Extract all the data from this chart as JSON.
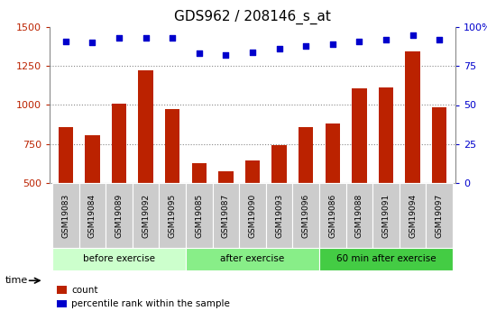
{
  "title": "GDS962 / 208146_s_at",
  "categories": [
    "GSM19083",
    "GSM19084",
    "GSM19089",
    "GSM19092",
    "GSM19095",
    "GSM19085",
    "GSM19087",
    "GSM19090",
    "GSM19093",
    "GSM19096",
    "GSM19086",
    "GSM19088",
    "GSM19091",
    "GSM19094",
    "GSM19097"
  ],
  "bar_values": [
    860,
    805,
    1010,
    1225,
    975,
    630,
    575,
    645,
    740,
    860,
    880,
    1105,
    1115,
    1345,
    985
  ],
  "percentile_values": [
    91,
    90,
    93,
    93,
    93,
    83,
    82,
    84,
    86,
    88,
    89,
    91,
    92,
    95,
    92
  ],
  "bar_color": "#bb2200",
  "percentile_color": "#0000cc",
  "ylim_left": [
    500,
    1500
  ],
  "ylim_right": [
    0,
    100
  ],
  "yticks_left": [
    500,
    750,
    1000,
    1250,
    1500
  ],
  "yticks_right": [
    0,
    25,
    50,
    75,
    100
  ],
  "group_defs": [
    {
      "label": "before exercise",
      "start": 0,
      "end": 4,
      "color": "#ccffcc"
    },
    {
      "label": "after exercise",
      "start": 5,
      "end": 9,
      "color": "#88ee88"
    },
    {
      "label": "60 min after exercise",
      "start": 10,
      "end": 14,
      "color": "#44cc44"
    }
  ],
  "tick_area_bg": "#cccccc",
  "legend_count_label": "count",
  "legend_pct_label": "percentile rank within the sample",
  "time_label": "time",
  "title_fontsize": 11,
  "dotted_grid_color": "#888888"
}
